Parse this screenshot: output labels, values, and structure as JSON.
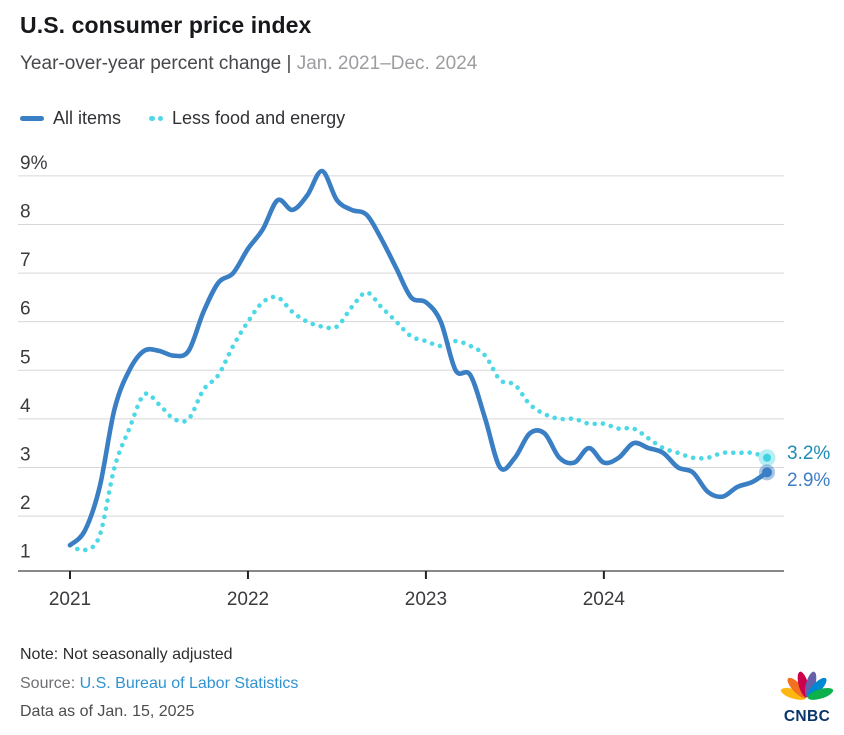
{
  "header": {
    "title": "U.S. consumer price index",
    "subtitle_main": "Year-over-year percent change |",
    "subtitle_range": "Jan. 2021–Dec. 2024"
  },
  "legend": [
    {
      "label": "All items",
      "color": "#3A7EC3",
      "swatch": "solid-line"
    },
    {
      "label": "Less food and energy",
      "color": "#4DD8E6",
      "swatch": "dotted-line"
    }
  ],
  "chart_data": {
    "type": "line",
    "title": "U.S. consumer price index",
    "subtitle": "Year-over-year percent change | Jan. 2021–Dec. 2024",
    "x_months": [
      "2021-01",
      "2021-02",
      "2021-03",
      "2021-04",
      "2021-05",
      "2021-06",
      "2021-07",
      "2021-08",
      "2021-09",
      "2021-10",
      "2021-11",
      "2021-12",
      "2022-01",
      "2022-02",
      "2022-03",
      "2022-04",
      "2022-05",
      "2022-06",
      "2022-07",
      "2022-08",
      "2022-09",
      "2022-10",
      "2022-11",
      "2022-12",
      "2023-01",
      "2023-02",
      "2023-03",
      "2023-04",
      "2023-05",
      "2023-06",
      "2023-07",
      "2023-08",
      "2023-09",
      "2023-10",
      "2023-11",
      "2023-12",
      "2024-01",
      "2024-02",
      "2024-03",
      "2024-04",
      "2024-05",
      "2024-06",
      "2024-07",
      "2024-08",
      "2024-09",
      "2024-10",
      "2024-11",
      "2024-12"
    ],
    "series": [
      {
        "name": "All items",
        "color": "#3A7EC3",
        "style": "solid",
        "values": [
          1.4,
          1.7,
          2.6,
          4.2,
          5.0,
          5.4,
          5.4,
          5.3,
          5.4,
          6.2,
          6.8,
          7.0,
          7.5,
          7.9,
          8.5,
          8.3,
          8.6,
          9.1,
          8.5,
          8.3,
          8.2,
          7.7,
          7.1,
          6.5,
          6.4,
          6.0,
          5.0,
          4.9,
          4.0,
          3.0,
          3.2,
          3.7,
          3.7,
          3.2,
          3.1,
          3.4,
          3.1,
          3.2,
          3.5,
          3.4,
          3.3,
          3.0,
          2.9,
          2.5,
          2.4,
          2.6,
          2.7,
          2.9
        ]
      },
      {
        "name": "Less food and energy",
        "color": "#4DD8E6",
        "style": "dotted",
        "values": [
          1.4,
          1.3,
          1.6,
          3.0,
          3.8,
          4.5,
          4.3,
          4.0,
          4.0,
          4.6,
          4.9,
          5.5,
          6.0,
          6.4,
          6.5,
          6.2,
          6.0,
          5.9,
          5.9,
          6.3,
          6.6,
          6.3,
          6.0,
          5.7,
          5.6,
          5.5,
          5.6,
          5.5,
          5.3,
          4.8,
          4.7,
          4.3,
          4.1,
          4.0,
          4.0,
          3.9,
          3.9,
          3.8,
          3.8,
          3.6,
          3.4,
          3.3,
          3.2,
          3.2,
          3.3,
          3.3,
          3.3,
          3.2
        ]
      }
    ],
    "y_ticks": [
      {
        "label": "9%",
        "value": 9
      },
      {
        "label": "8",
        "value": 8
      },
      {
        "label": "7",
        "value": 7
      },
      {
        "label": "6",
        "value": 6
      },
      {
        "label": "5",
        "value": 5
      },
      {
        "label": "4",
        "value": 4
      },
      {
        "label": "3",
        "value": 3
      },
      {
        "label": "2",
        "value": 2
      },
      {
        "label": "1",
        "value": 1
      }
    ],
    "x_ticks": [
      {
        "label": "2021",
        "month": 0
      },
      {
        "label": "2022",
        "month": 12
      },
      {
        "label": "2023",
        "month": 24
      },
      {
        "label": "2024",
        "month": 36
      }
    ],
    "ylim": [
      0.87,
      9.4
    ],
    "grid": "horizontal-only",
    "legend_position": "top-left",
    "end_labels": [
      {
        "text": "3.2%",
        "value": 3.2,
        "series": "Less food and energy",
        "color": "#1b8cb8"
      },
      {
        "text": "2.9%",
        "value": 2.9,
        "series": "All items",
        "color": "#3d7ec6"
      }
    ]
  },
  "footer": {
    "note": "Note: Not seasonally adjusted",
    "source_label": "Source: ",
    "source_link": "U.S. Bureau of Labor Statistics",
    "data_as_of": "Data as of Jan. 15, 2025",
    "logo_text": "CNBC"
  }
}
